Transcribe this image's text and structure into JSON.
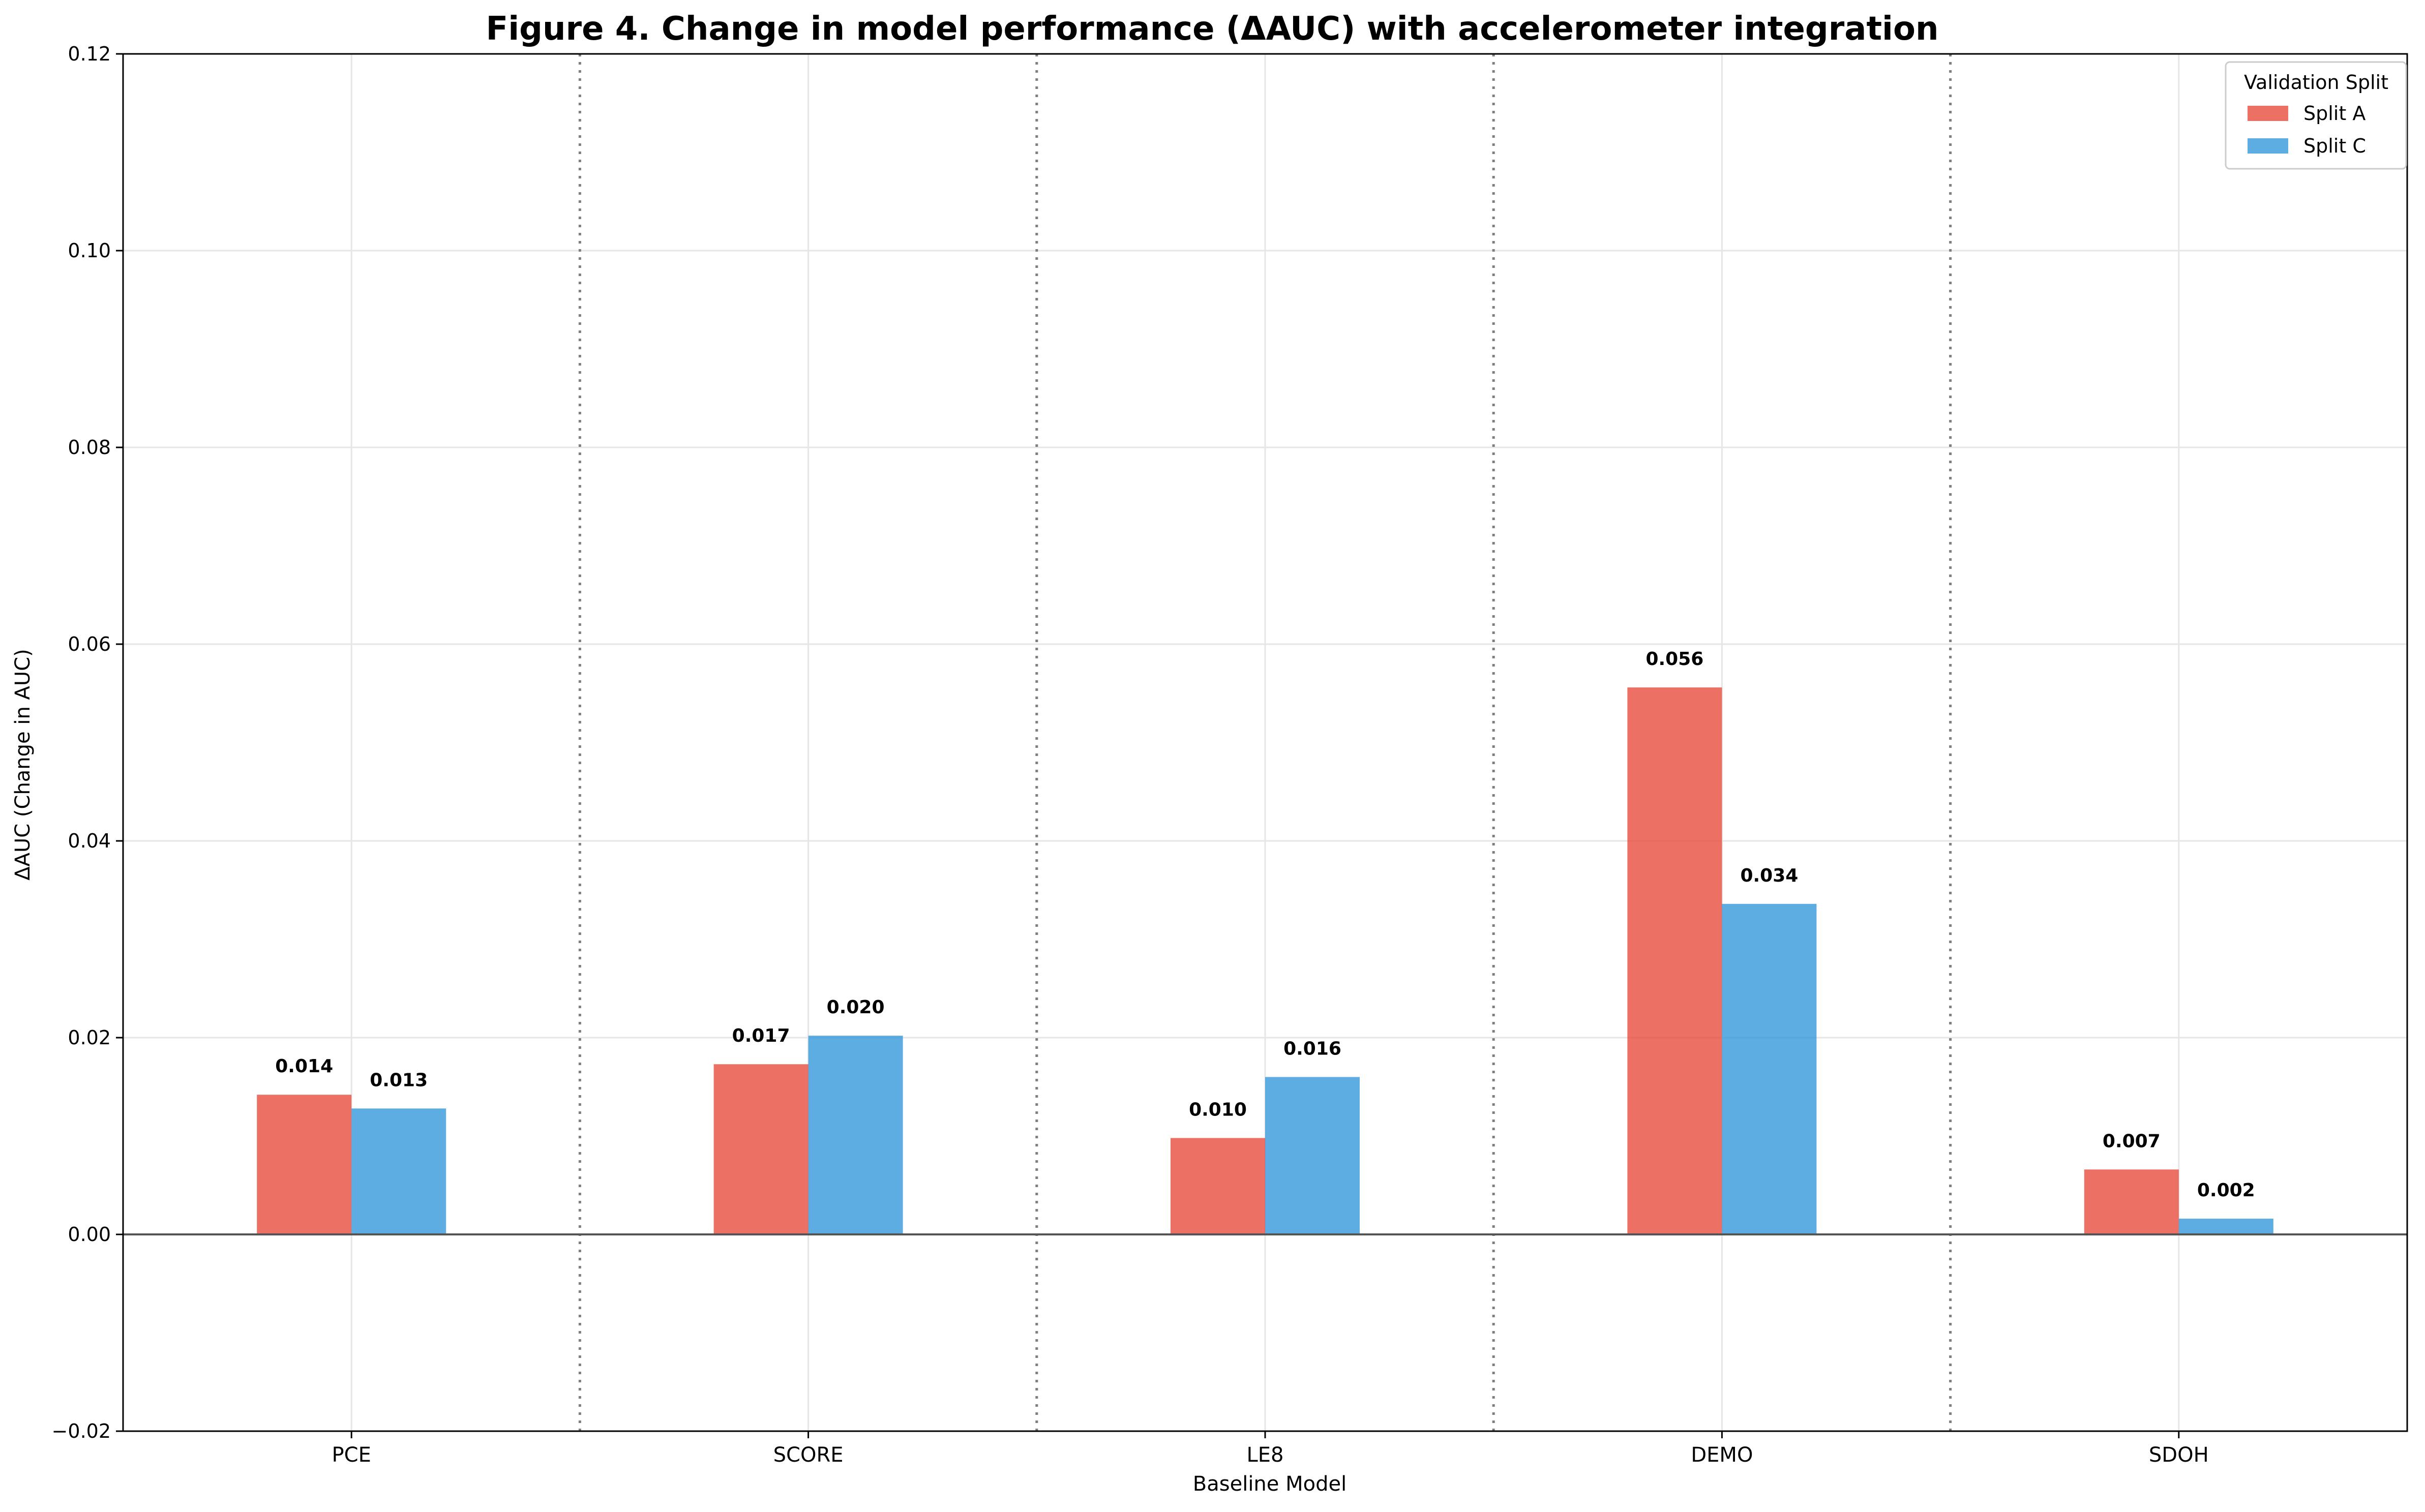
{
  "chart_data": {
    "type": "bar",
    "title": "Figure 4. Change in model performance (ΔAUC) with accelerometer integration",
    "xlabel": "Baseline Model",
    "ylabel": "ΔAUC (Change in AUC)",
    "categories": [
      "PCE",
      "SCORE",
      "LE8",
      "DEMO",
      "SDOH"
    ],
    "series": [
      {
        "name": "Split A",
        "color": "#e74c3c",
        "values": [
          0.0142,
          0.0173,
          0.0098,
          0.0556,
          0.0066
        ],
        "labels": [
          "0.014",
          "0.017",
          "0.010",
          "0.056",
          "0.007"
        ]
      },
      {
        "name": "Split C",
        "color": "#3498db",
        "values": [
          0.0128,
          0.0202,
          0.016,
          0.0336,
          0.0016
        ],
        "labels": [
          "0.013",
          "0.020",
          "0.016",
          "0.034",
          "0.002"
        ]
      }
    ],
    "ylim": [
      -0.02,
      0.12
    ],
    "yticks": [
      -0.02,
      0.0,
      0.02,
      0.04,
      0.06,
      0.08,
      0.1,
      0.12
    ],
    "ytick_labels": [
      "−0.02",
      "0.00",
      "0.02",
      "0.04",
      "0.06",
      "0.08",
      "0.10",
      "0.12"
    ],
    "grid": true,
    "zero_line": true,
    "group_separators": "dotted",
    "legend": {
      "title": "Validation Split",
      "placement": "top-right",
      "entries": [
        "Split A",
        "Split C"
      ]
    }
  }
}
